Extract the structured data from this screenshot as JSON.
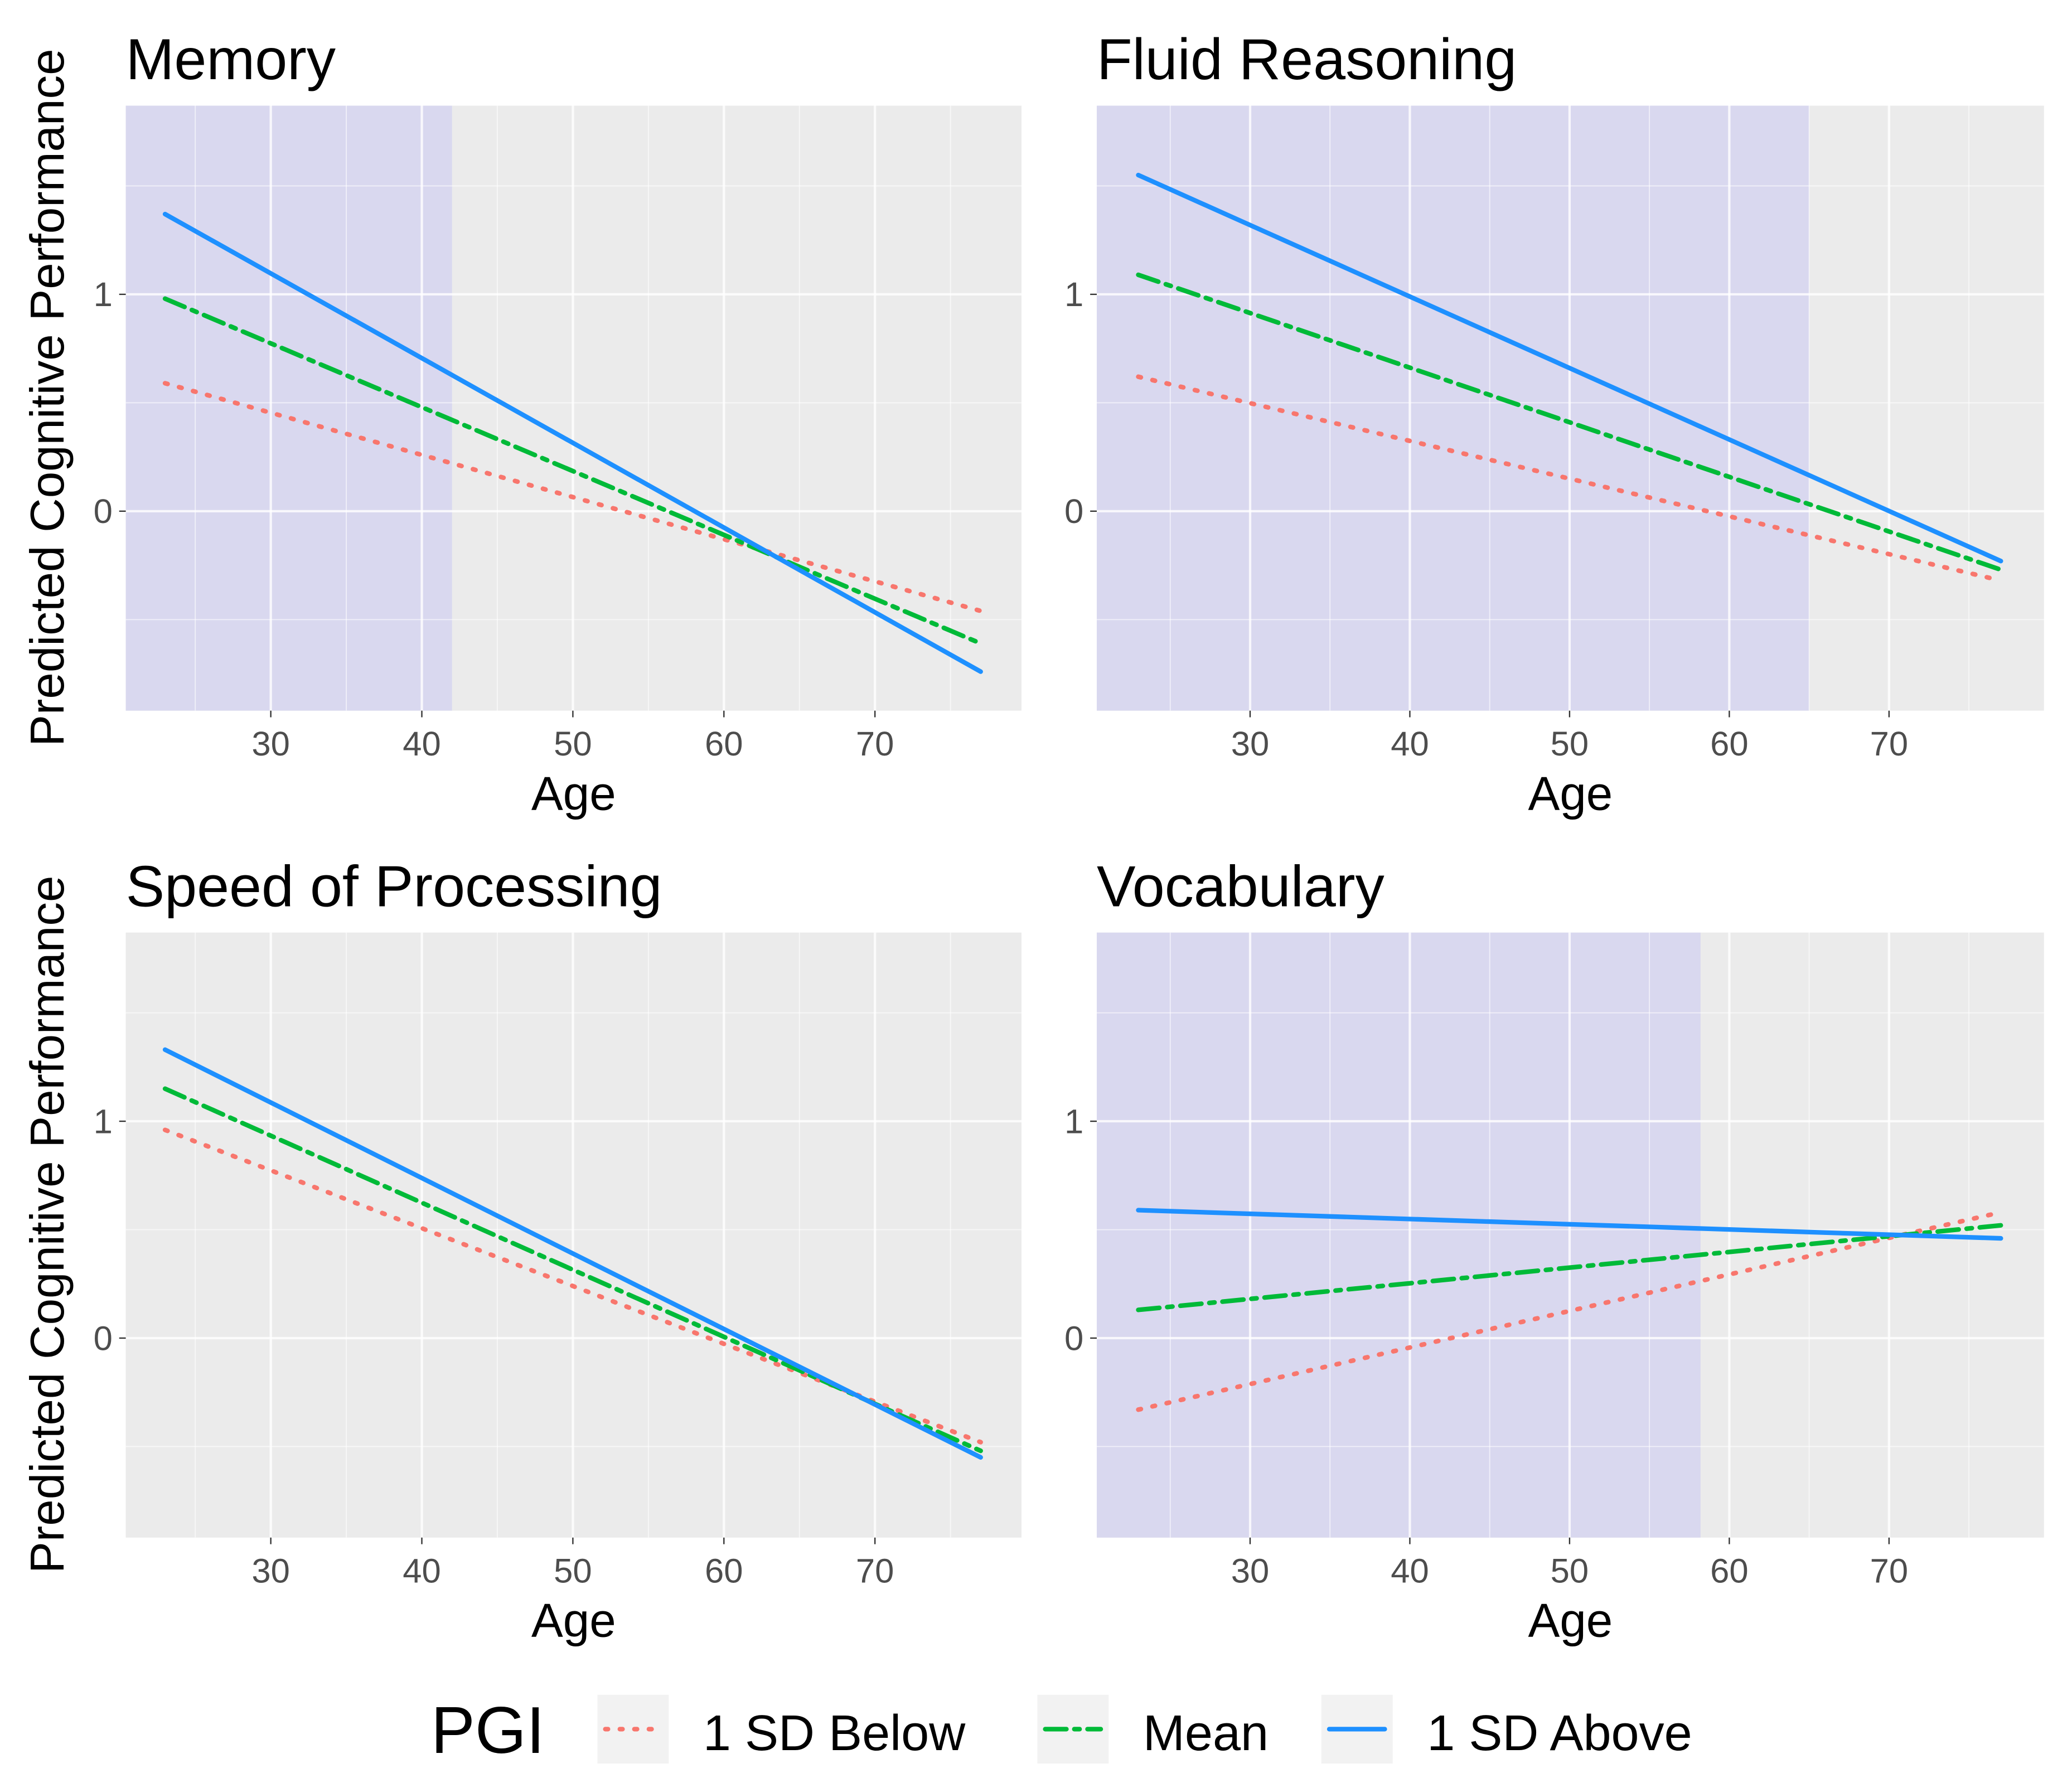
{
  "chart_data": [
    {
      "type": "line",
      "title": "Memory",
      "xlabel": "Age",
      "ylabel": "Predicted Cognitive Performance",
      "xlim": [
        20.4,
        79.7
      ],
      "ylim": [
        -0.92,
        1.87
      ],
      "xticks": [
        30,
        40,
        50,
        60,
        70
      ],
      "yticks": [
        0,
        1
      ],
      "grid": true,
      "shaded_region": {
        "from": 20.4,
        "to": 42
      },
      "x": [
        23,
        77
      ],
      "series": [
        {
          "name": "1 SD Below",
          "values": [
            0.59,
            -0.46
          ]
        },
        {
          "name": "Mean",
          "values": [
            0.98,
            -0.61
          ]
        },
        {
          "name": "1 SD Above",
          "values": [
            1.37,
            -0.74
          ]
        }
      ]
    },
    {
      "type": "line",
      "title": "Fluid Reasoning",
      "xlabel": "Age",
      "ylabel": "",
      "xlim": [
        20.4,
        79.7
      ],
      "ylim": [
        -0.92,
        1.87
      ],
      "xticks": [
        30,
        40,
        50,
        60,
        70
      ],
      "yticks": [
        0,
        1
      ],
      "grid": true,
      "shaded_region": {
        "from": 20.4,
        "to": 65
      },
      "x": [
        23,
        77
      ],
      "series": [
        {
          "name": "1 SD Below",
          "values": [
            0.62,
            -0.32
          ]
        },
        {
          "name": "Mean",
          "values": [
            1.09,
            -0.27
          ]
        },
        {
          "name": "1 SD Above",
          "values": [
            1.55,
            -0.23
          ]
        }
      ]
    },
    {
      "type": "line",
      "title": "Speed of Processing",
      "xlabel": "Age",
      "ylabel": "Predicted Cognitive Performance",
      "xlim": [
        20.4,
        79.7
      ],
      "ylim": [
        -0.92,
        1.87
      ],
      "xticks": [
        30,
        40,
        50,
        60,
        70
      ],
      "yticks": [
        0,
        1
      ],
      "grid": true,
      "shaded_region": null,
      "x": [
        23,
        77
      ],
      "series": [
        {
          "name": "1 SD Below",
          "values": [
            0.96,
            -0.48
          ]
        },
        {
          "name": "Mean",
          "values": [
            1.15,
            -0.52
          ]
        },
        {
          "name": "1 SD Above",
          "values": [
            1.33,
            -0.55
          ]
        }
      ]
    },
    {
      "type": "line",
      "title": "Vocabulary",
      "xlabel": "Age",
      "ylabel": "",
      "xlim": [
        20.4,
        79.7
      ],
      "ylim": [
        -0.92,
        1.87
      ],
      "xticks": [
        30,
        40,
        50,
        60,
        70
      ],
      "yticks": [
        0,
        1
      ],
      "grid": true,
      "shaded_region": {
        "from": 20.4,
        "to": 58.2
      },
      "x": [
        23,
        77
      ],
      "series": [
        {
          "name": "1 SD Below",
          "values": [
            -0.33,
            0.58
          ]
        },
        {
          "name": "Mean",
          "values": [
            0.13,
            0.52
          ]
        },
        {
          "name": "1 SD Above",
          "values": [
            0.59,
            0.46
          ]
        }
      ]
    }
  ],
  "legend": {
    "title": "PGI",
    "position": "bottom",
    "items": [
      {
        "label": "1 SD Below",
        "color": "#F8766D",
        "style": "dotted"
      },
      {
        "label": "Mean",
        "color": "#00BA38",
        "style": "dashed"
      },
      {
        "label": "1 SD Above",
        "color": "#1E90FF",
        "style": "solid"
      }
    ]
  },
  "colors": {
    "panel": "#EBEBEB",
    "shade": "#D9D8EF",
    "grid": "#FFFFFF"
  }
}
